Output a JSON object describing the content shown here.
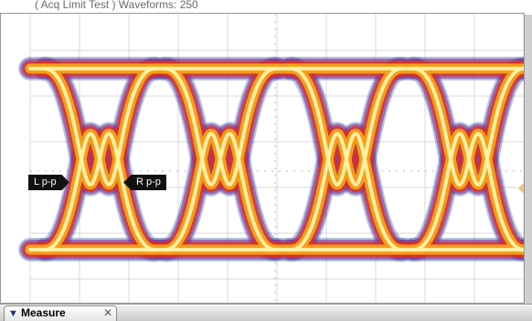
{
  "header": {
    "caption": "( Acq Limit Test ) Waveforms: 250"
  },
  "display": {
    "trace_colors": {
      "core": "#fff2a8",
      "mid": "#f4a21a",
      "outer": "#e0301a",
      "halo": "#7a2aa0",
      "edge": "#3c5a9c"
    },
    "grid_color": "#d9d9d9",
    "center_axis_color": "#b8b8b8"
  },
  "markers": {
    "left_label": "L p-p",
    "right_label": "R p-p"
  },
  "footer": {
    "tab_label": "Measure",
    "tab_icon": "chevron-down-icon",
    "close_icon": "close-icon"
  }
}
